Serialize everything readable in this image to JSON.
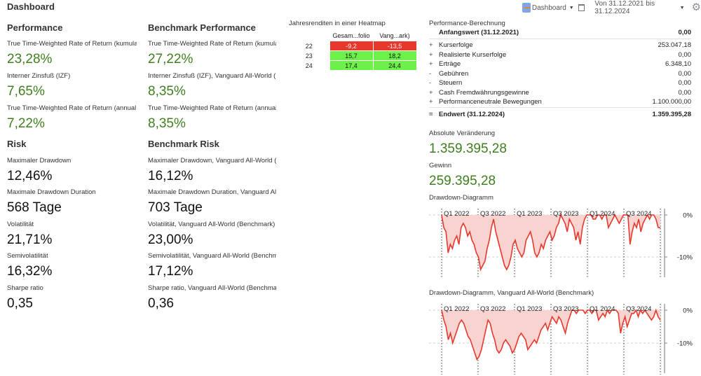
{
  "header": {
    "title": "Dashboard",
    "view_selector": "Dashboard",
    "period": "Von 31.12.2021 bis 31.12.2024",
    "icons": [
      "dashboard-icon",
      "new-window-icon",
      "gear-icon"
    ]
  },
  "performance": {
    "heading": "Performance",
    "items": [
      {
        "label": "True Time-Weighted Rate of Return (kumula",
        "value": "23,28%"
      },
      {
        "label": "Interner Zinsfuß (IZF)",
        "value": "7,65%"
      },
      {
        "label": "True Time-Weighted Rate of Return (annual",
        "value": "7,22%"
      }
    ]
  },
  "benchmark_performance": {
    "heading": "Benchmark Performance",
    "items": [
      {
        "label": "True Time-Weighted Rate of Return (kumula",
        "value": "27,22%"
      },
      {
        "label": "Interner Zinsfuß (IZF), Vanguard All-World (",
        "value": "8,35%"
      },
      {
        "label": "True Time-Weighted Rate of Return (annual",
        "value": "8,35%"
      }
    ]
  },
  "risk": {
    "heading": "Risk",
    "items": [
      {
        "label": "Maximaler Drawdown",
        "value": "12,46%"
      },
      {
        "label": "Maximale Drawdown Duration",
        "value": "568 Tage"
      },
      {
        "label": "Volatilität",
        "value": "21,71%"
      },
      {
        "label": "Semivolatilität",
        "value": "16,32%"
      },
      {
        "label": "Sharpe ratio",
        "value": "0,35"
      }
    ]
  },
  "benchmark_risk": {
    "heading": "Benchmark Risk",
    "items": [
      {
        "label": "Maximaler Drawdown, Vanguard All-World (",
        "value": "16,12%"
      },
      {
        "label": "Maximale Drawdown Duration, Vanguard All",
        "value": "703 Tage"
      },
      {
        "label": "Volatilität, Vanguard All-World (Benchmark)",
        "value": "23,00%"
      },
      {
        "label": "Semivolatilität, Vanguard All-World (Benchm",
        "value": "17,12%"
      },
      {
        "label": "Sharpe ratio, Vanguard All-World (Benchma",
        "value": "0,36"
      }
    ]
  },
  "heatmap": {
    "title": "Jahresrenditen in einer Heatmap",
    "columns": [
      "Gesam...folio",
      "Vang...ark)"
    ],
    "rows": [
      {
        "year": "22",
        "values": [
          "-9,2",
          "-13,5"
        ],
        "colors": [
          "#e8372c",
          "#e8372c"
        ],
        "text_colors": [
          "#ffffff",
          "#ffffff"
        ]
      },
      {
        "year": "23",
        "values": [
          "15,7",
          "18,2"
        ],
        "colors": [
          "#6ef04a",
          "#6ef04a"
        ],
        "text_colors": [
          "#111111",
          "#111111"
        ]
      },
      {
        "year": "24",
        "values": [
          "17,4",
          "24,4"
        ],
        "colors": [
          "#6ef04a",
          "#6ef04a"
        ],
        "text_colors": [
          "#111111",
          "#111111"
        ]
      }
    ]
  },
  "calculation": {
    "title": "Performance-Berechnung",
    "start": {
      "label": "Anfangswert (31.12.2021)",
      "amount": "0,00"
    },
    "rows": [
      {
        "sign": "+",
        "label": "Kurserfolge",
        "amount": "253.047,18"
      },
      {
        "sign": "+",
        "label": "Realisierte Kurserfolge",
        "amount": "0,00"
      },
      {
        "sign": "+",
        "label": "Erträge",
        "amount": "6.348,10"
      },
      {
        "sign": "-",
        "label": "Gebühren",
        "amount": "0,00"
      },
      {
        "sign": "-",
        "label": "Steuern",
        "amount": "0,00"
      },
      {
        "sign": "+",
        "label": "Cash Fremdwährungsgewinne",
        "amount": "0,00"
      },
      {
        "sign": "+",
        "label": "Performanceneutrale Bewegungen",
        "amount": "1.100.000,00"
      }
    ],
    "end": {
      "sign": "=",
      "label": "Endwert (31.12.2024)",
      "amount": "1.359.395,28"
    }
  },
  "absolute_change": {
    "label": "Absolute Veränderung",
    "value": "1.359.395,28"
  },
  "gain": {
    "label": "Gewinn",
    "value": "259.395,28"
  },
  "colors": {
    "positive": "#3f7f1f",
    "drawdown_line": "#e8372c",
    "drawdown_fill": "#f9d3d0"
  },
  "chart_data": [
    {
      "type": "area",
      "title": "Drawdown-Diagramm",
      "x_ticks": [
        "Q1 2022",
        "Q3 2022",
        "Q1 2023",
        "Q3 2023",
        "Q1 2024",
        "Q3 2024"
      ],
      "y_ticks": [
        "0%",
        "-10%"
      ],
      "ylim": [
        -16,
        1
      ],
      "values": [
        0,
        -3,
        -4,
        -9,
        -7,
        -8,
        -6,
        -5,
        -7,
        -3,
        -2,
        -3,
        -5,
        -4,
        -6,
        -7,
        -9,
        -10,
        -13,
        -12,
        -11,
        -8,
        -6,
        -3,
        -1,
        -4,
        -6,
        -8,
        -10,
        -12,
        -13,
        -12,
        -10,
        -7,
        -6,
        -8,
        -9,
        -10,
        -9,
        -6,
        -5,
        -4,
        -6,
        -9,
        -10,
        -9,
        -7,
        -8,
        -6,
        -5,
        -4,
        -6,
        -5,
        -3,
        -2,
        0,
        -1,
        -2,
        -4,
        -1,
        -2,
        -3,
        -6,
        -4,
        -7,
        -3,
        -1,
        0,
        0,
        0,
        -1,
        -1,
        0,
        0,
        -1,
        0,
        0,
        -3,
        -2,
        -1,
        0,
        -1,
        -2,
        -1,
        0,
        0,
        0,
        -7,
        -4,
        -2,
        -3,
        -1,
        -4,
        -2,
        -1,
        0,
        -1,
        0,
        0,
        -1,
        -3,
        -3
      ]
    },
    {
      "type": "area",
      "title": "Drawdown-Diagramm, Vanguard All-World (Benchmark)",
      "x_ticks": [
        "Q1 2022",
        "Q3 2022",
        "Q1 2023",
        "Q3 2023",
        "Q1 2024",
        "Q3 2024"
      ],
      "y_ticks": [
        "0%",
        "-10%"
      ],
      "ylim": [
        -17,
        1
      ],
      "values": [
        0,
        -3,
        -5,
        -9,
        -7,
        -10,
        -8,
        -6,
        -4,
        -3,
        -4,
        -6,
        -8,
        -9,
        -11,
        -13,
        -15,
        -14,
        -12,
        -9,
        -6,
        -3,
        -4,
        -7,
        -9,
        -12,
        -13,
        -12,
        -10,
        -9,
        -10,
        -11,
        -13,
        -12,
        -10,
        -8,
        -7,
        -8,
        -9,
        -12,
        -11,
        -10,
        -9,
        -10,
        -8,
        -6,
        -5,
        -4,
        -6,
        -4,
        -2,
        -3,
        -4,
        -2,
        -3,
        -5,
        -7,
        -4,
        -2,
        0,
        0,
        -1,
        0,
        0,
        0,
        -1,
        0,
        0,
        -1,
        0,
        0,
        -3,
        -2,
        -1,
        -2,
        0,
        -1,
        0,
        0,
        0,
        -1,
        -7,
        -4,
        -2,
        -5,
        -3,
        -1,
        -1,
        0,
        -2,
        0,
        -1,
        0,
        -1,
        -2,
        -3,
        -2,
        0,
        -2,
        -3
      ]
    }
  ]
}
